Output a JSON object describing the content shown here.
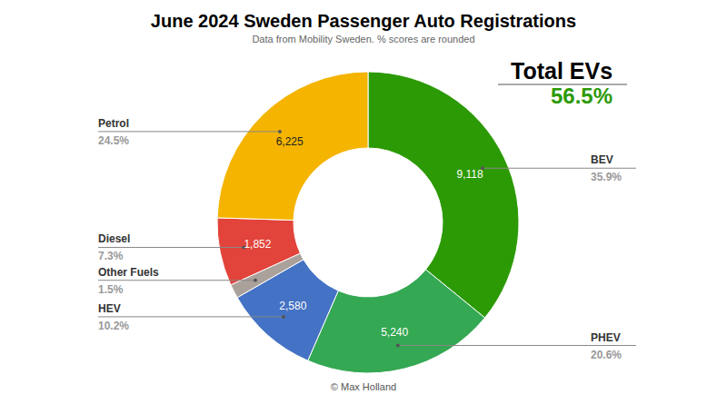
{
  "chart_data": {
    "type": "donut",
    "title": "June 2024 Sweden Passenger Auto Registrations",
    "subtitle": "Data from Mobility Sweden. % scores are rounded",
    "categories": [
      "BEV",
      "PHEV",
      "HEV",
      "Other Fuels",
      "Diesel",
      "Petrol"
    ],
    "values": [
      9118,
      5240,
      2580,
      381,
      1852,
      6225
    ],
    "value_labels": [
      "9,118",
      "5,240",
      "2,580",
      null,
      "1,852",
      "6,225"
    ],
    "percent_labels": [
      "35.9%",
      "20.6%",
      "10.2%",
      "1.5%",
      "7.3%",
      "24.5%"
    ],
    "colors": [
      "#2c9a05",
      "#34a853",
      "#4472c4",
      "#a9a19a",
      "#e2433a",
      "#f4b400"
    ],
    "data_labels": true,
    "annotation": {
      "title": "Total EVs",
      "value_label": "56.5%"
    },
    "credit": "© Max Holland"
  }
}
